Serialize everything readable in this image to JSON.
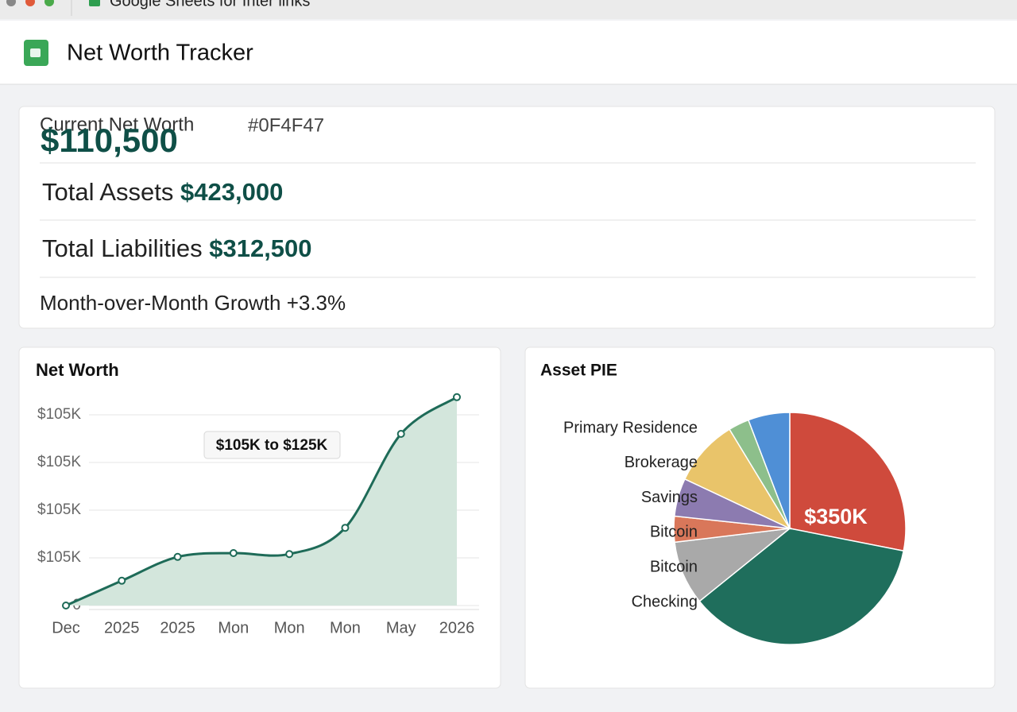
{
  "browser": {
    "tab_title": "Google Sheets for Inter links"
  },
  "header": {
    "title": "Net Worth Tracker"
  },
  "summary": {
    "net_worth_label": "Current Net Worth",
    "color_code": "#0F4F47",
    "net_worth": "$110,500",
    "assets_label": "Total Assets",
    "assets": "$423,000",
    "liabilities_label": "Total Liabilities",
    "liabilities": "$312,500",
    "growth_label": "Month-over-Month Growth",
    "growth": "+3.3%"
  },
  "chart_data": [
    {
      "type": "line",
      "title": "Net Worth",
      "categories": [
        "Dec",
        "2025",
        "2025",
        "Mon",
        "Mon",
        "Mon",
        "May",
        "2026"
      ],
      "values": [
        0,
        0.52,
        1.02,
        1.1,
        1.08,
        1.63,
        3.6,
        4.37
      ],
      "color": "#1e6b58",
      "fill": "#d3e6dc",
      "ylim": [
        0,
        4.5
      ],
      "yticks": [
        0,
        {
          "value": 1,
          "label": "$105K"
        },
        {
          "value": 2,
          "label": "$105K"
        },
        {
          "value": 3,
          "label": "$105K"
        },
        {
          "value": 4,
          "label": "$105K"
        }
      ],
      "grid": true,
      "annotation": "$105K to $125K"
    },
    {
      "type": "pie",
      "title": "Asset PIE",
      "categories": [
        null,
        "Checking",
        "Bitcoin",
        "Bitcoin",
        "Savings",
        "Brokerage",
        "Primary Residence",
        null
      ],
      "values": [
        28.1,
        36.1,
        8.9,
        3.6,
        5.3,
        9.3,
        2.9,
        5.8
      ],
      "colors": [
        "#cf4a3c",
        "#1f6e5c",
        "#a9a9a9",
        "#d9775a",
        "#8c7bb0",
        "#e9c46a",
        "#8dbf8b",
        "#4f8fd6"
      ],
      "center_label": "$350K"
    }
  ]
}
